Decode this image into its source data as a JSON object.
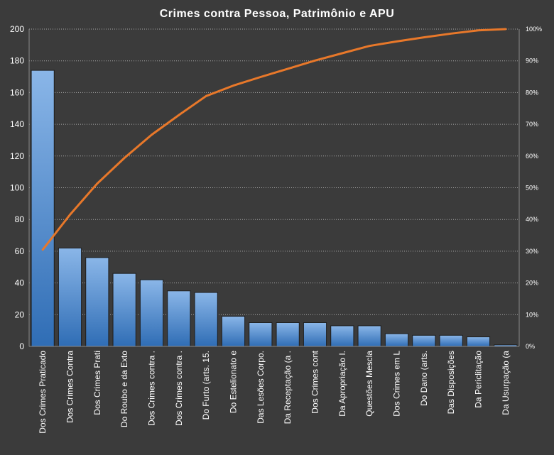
{
  "chart_data": {
    "type": "bar",
    "title": "Crimes contra Pessoa, Patrimônio e APU",
    "categories": [
      "Dos Crimes Praticado",
      "Dos Crimes Contra",
      "Dos Crimes Prati",
      "Do Roubo e da Exto",
      "Dos Crimes contra .",
      "Dos Crimes contra .",
      "Do Furto (arts. 15.",
      "Do Estelionato e",
      "Das Lesões Corpo.",
      "Da Receptação (a .",
      "Dos Crimes cont",
      "Da Apropriação I.",
      "Questões Mescla",
      "Dos Crimes em L",
      "Do Dano (arts.",
      "Das Disposições",
      "Da Periclitação",
      "Da Usurpação (a"
    ],
    "series": [
      {
        "type": "bar",
        "values": [
          174,
          62,
          56,
          46,
          42,
          35,
          34,
          19,
          15,
          15,
          15,
          13,
          13,
          8,
          7,
          7,
          6,
          1
        ]
      },
      {
        "type": "line",
        "axis": "secondary",
        "values": [
          30.5,
          41.5,
          51.3,
          59.4,
          66.7,
          72.9,
          78.9,
          82.2,
          84.9,
          87.5,
          90.1,
          92.4,
          94.7,
          96.1,
          97.4,
          98.6,
          99.6,
          100.0
        ]
      }
    ],
    "y_ticks": [
      "0",
      "20",
      "40",
      "60",
      "80",
      "100",
      "120",
      "140",
      "160",
      "180",
      "200"
    ],
    "y2_ticks": [
      "0%",
      "10%",
      "20%",
      "30%",
      "40%",
      "50%",
      "60%",
      "70%",
      "80%",
      "90%",
      "100%"
    ],
    "ylim": [
      0,
      200
    ],
    "y2lim": [
      0,
      100
    ],
    "grid": true,
    "colors": {
      "background": "#3b3b3b",
      "bar_top": "#8ab6e8",
      "bar_bottom": "#2f6db5",
      "line": "#e8782a",
      "text": "#ffffff",
      "grid": "#a8a8a8"
    }
  }
}
